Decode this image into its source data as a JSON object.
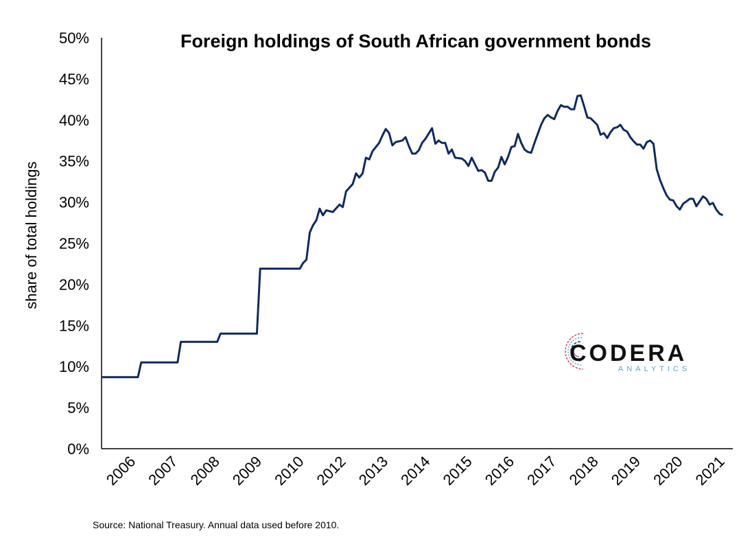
{
  "source_note": "Source: National Treasury. Annual data used before 2010.",
  "logo": {
    "main": "CODERA",
    "sub": "ANALYTICS"
  },
  "colors": {
    "line": "#0e2a63",
    "axis": "#000000"
  },
  "chart_data": {
    "type": "line",
    "title": "Foreign holdings of South African government bonds",
    "xlabel": "",
    "ylabel": "share of total holdings",
    "ylim": [
      0,
      50
    ],
    "xlim": [
      "2006-01",
      "2021-12"
    ],
    "y_ticks": [
      "0%",
      "5%",
      "10%",
      "15%",
      "20%",
      "25%",
      "30%",
      "35%",
      "40%",
      "45%",
      "50%"
    ],
    "x_ticks": [
      "2006",
      "2007",
      "2008",
      "2009",
      "2010",
      "2012",
      "2013",
      "2014",
      "2015",
      "2016",
      "2017",
      "2018",
      "2019",
      "2020",
      "2021"
    ],
    "grid": false,
    "legend": "none",
    "series": [
      {
        "values": [
          [
            "2006-01",
            8.7
          ],
          [
            "2006-12",
            8.7
          ],
          [
            "2007-01",
            10.5
          ],
          [
            "2007-12",
            10.5
          ],
          [
            "2008-01",
            13.0
          ],
          [
            "2008-12",
            13.0
          ],
          [
            "2009-01",
            14.0
          ],
          [
            "2009-12",
            14.0
          ],
          [
            "2010-01",
            21.9
          ],
          [
            "2011-01",
            21.9
          ],
          [
            "2011-02",
            22.6
          ],
          [
            "2011-03",
            23.0
          ],
          [
            "2011-04",
            26.3
          ],
          [
            "2011-05",
            27.2
          ],
          [
            "2011-06",
            27.8
          ],
          [
            "2011-07",
            29.2
          ],
          [
            "2011-08",
            28.4
          ],
          [
            "2011-09",
            29.0
          ],
          [
            "2011-11",
            28.8
          ],
          [
            "2012-01",
            29.7
          ],
          [
            "2012-02",
            29.4
          ],
          [
            "2012-03",
            31.3
          ],
          [
            "2012-05",
            32.2
          ],
          [
            "2012-06",
            33.5
          ],
          [
            "2012-07",
            33.0
          ],
          [
            "2012-08",
            33.5
          ],
          [
            "2012-09",
            35.4
          ],
          [
            "2012-10",
            35.2
          ],
          [
            "2012-11",
            36.2
          ],
          [
            "2012-12",
            36.7
          ],
          [
            "2013-01",
            37.2
          ],
          [
            "2013-02",
            38.1
          ],
          [
            "2013-03",
            38.9
          ],
          [
            "2013-04",
            38.4
          ],
          [
            "2013-05",
            36.9
          ],
          [
            "2013-06",
            37.3
          ],
          [
            "2013-08",
            37.5
          ],
          [
            "2013-09",
            37.9
          ],
          [
            "2013-10",
            36.8
          ],
          [
            "2013-11",
            35.9
          ],
          [
            "2013-12",
            35.9
          ],
          [
            "2014-01",
            36.3
          ],
          [
            "2014-02",
            37.2
          ],
          [
            "2014-03",
            37.7
          ],
          [
            "2014-05",
            39.0
          ],
          [
            "2014-06",
            37.1
          ],
          [
            "2014-07",
            37.5
          ],
          [
            "2014-08",
            37.2
          ],
          [
            "2014-09",
            37.2
          ],
          [
            "2014-10",
            35.9
          ],
          [
            "2014-11",
            36.4
          ],
          [
            "2014-12",
            35.4
          ],
          [
            "2015-02",
            35.3
          ],
          [
            "2015-03",
            35.0
          ],
          [
            "2015-04",
            34.4
          ],
          [
            "2015-05",
            35.4
          ],
          [
            "2015-06",
            34.6
          ],
          [
            "2015-07",
            33.8
          ],
          [
            "2015-08",
            33.9
          ],
          [
            "2015-09",
            33.6
          ],
          [
            "2015-10",
            32.6
          ],
          [
            "2015-11",
            32.6
          ],
          [
            "2015-12",
            33.7
          ],
          [
            "2016-01",
            34.2
          ],
          [
            "2016-02",
            35.5
          ],
          [
            "2016-03",
            34.6
          ],
          [
            "2016-04",
            35.5
          ],
          [
            "2016-05",
            36.7
          ],
          [
            "2016-06",
            36.8
          ],
          [
            "2016-07",
            38.3
          ],
          [
            "2016-08",
            37.2
          ],
          [
            "2016-09",
            36.4
          ],
          [
            "2016-10",
            36.1
          ],
          [
            "2016-11",
            36.0
          ],
          [
            "2016-12",
            37.2
          ],
          [
            "2017-01",
            38.3
          ],
          [
            "2017-02",
            39.4
          ],
          [
            "2017-03",
            40.2
          ],
          [
            "2017-04",
            40.6
          ],
          [
            "2017-05",
            40.3
          ],
          [
            "2017-06",
            40.1
          ],
          [
            "2017-07",
            41.1
          ],
          [
            "2017-08",
            41.8
          ],
          [
            "2017-09",
            41.6
          ],
          [
            "2017-10",
            41.6
          ],
          [
            "2017-11",
            41.3
          ],
          [
            "2017-12",
            41.3
          ],
          [
            "2018-01",
            42.9
          ],
          [
            "2018-02",
            43.0
          ],
          [
            "2018-03",
            41.7
          ],
          [
            "2018-04",
            40.3
          ],
          [
            "2018-05",
            40.2
          ],
          [
            "2018-06",
            39.8
          ],
          [
            "2018-07",
            39.4
          ],
          [
            "2018-08",
            38.2
          ],
          [
            "2018-09",
            38.4
          ],
          [
            "2018-10",
            37.8
          ],
          [
            "2018-11",
            38.5
          ],
          [
            "2018-12",
            39.0
          ],
          [
            "2019-01",
            39.1
          ],
          [
            "2019-02",
            39.4
          ],
          [
            "2019-03",
            38.8
          ],
          [
            "2019-04",
            38.6
          ],
          [
            "2019-05",
            37.9
          ],
          [
            "2019-06",
            37.4
          ],
          [
            "2019-07",
            37.0
          ],
          [
            "2019-08",
            37.0
          ],
          [
            "2019-09",
            36.5
          ],
          [
            "2019-10",
            37.3
          ],
          [
            "2019-11",
            37.5
          ],
          [
            "2019-12",
            37.1
          ],
          [
            "2020-01",
            34.0
          ],
          [
            "2020-02",
            32.7
          ],
          [
            "2020-03",
            31.7
          ],
          [
            "2020-04",
            30.8
          ],
          [
            "2020-05",
            30.3
          ],
          [
            "2020-06",
            30.2
          ],
          [
            "2020-07",
            29.5
          ],
          [
            "2020-08",
            29.1
          ],
          [
            "2020-09",
            29.8
          ],
          [
            "2020-10",
            30.1
          ],
          [
            "2020-11",
            30.4
          ],
          [
            "2020-12",
            30.4
          ],
          [
            "2021-01",
            29.5
          ],
          [
            "2021-02",
            30.1
          ],
          [
            "2021-03",
            30.7
          ],
          [
            "2021-04",
            30.4
          ],
          [
            "2021-05",
            29.7
          ],
          [
            "2021-06",
            29.9
          ],
          [
            "2021-07",
            29.1
          ],
          [
            "2021-08",
            28.6
          ],
          [
            "2021-09",
            28.4
          ]
        ]
      }
    ]
  }
}
